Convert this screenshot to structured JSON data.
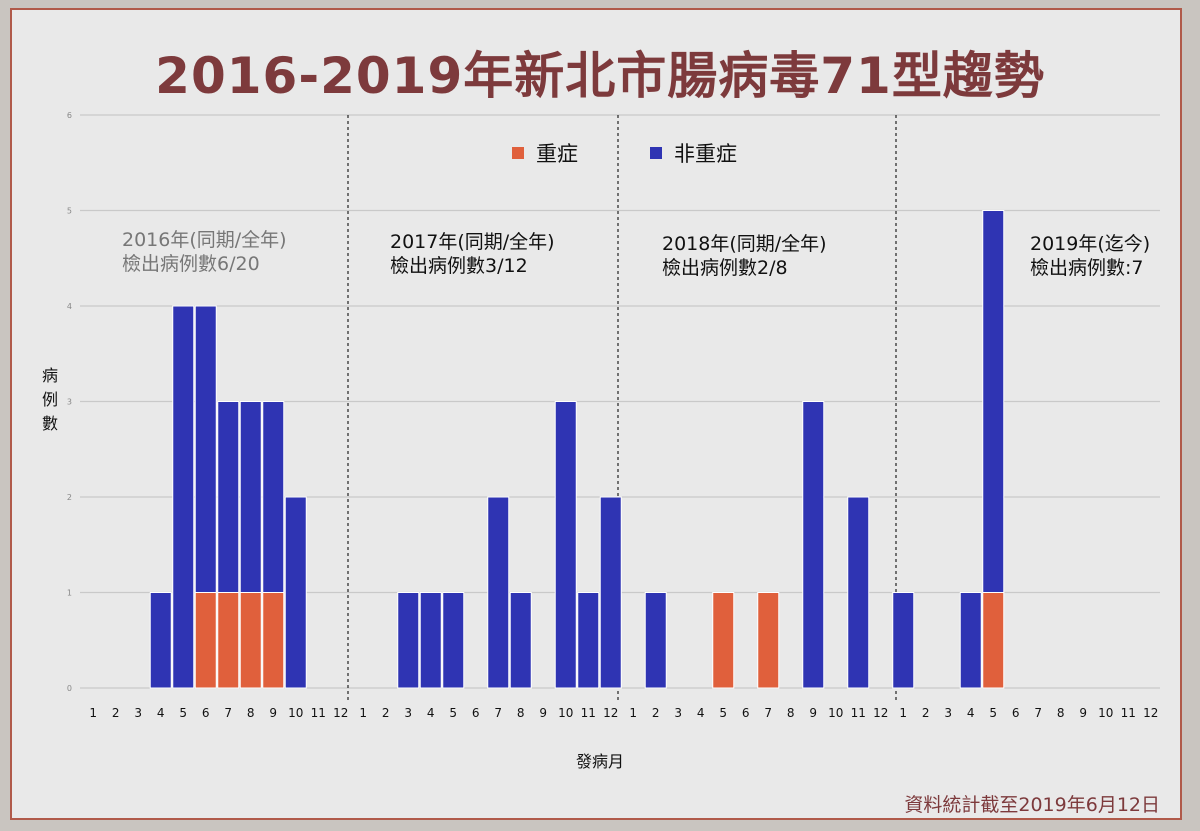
{
  "title": "2016-2019年新北市腸病毒71型趨勢",
  "footnote": "資料統計截至2019年6月12日",
  "legend": {
    "severe": "重症",
    "non_severe": "非重症"
  },
  "colors": {
    "severe": "#e0603c",
    "non_severe": "#2f34b3"
  },
  "annotations": [
    {
      "line1": "2016年(同期/全年)",
      "line2": "檢出病例數6/20"
    },
    {
      "line1": "2017年(同期/全年)",
      "line2": "檢出病例數3/12"
    },
    {
      "line1": "2018年(同期/全年)",
      "line2": "檢出病例數2/8"
    },
    {
      "line1": "2019年(迄今)",
      "line2": "檢出病例數:7"
    }
  ],
  "chart_data": {
    "type": "bar",
    "stacked": true,
    "xlabel": "發病月",
    "ylabel": "病例數",
    "ylim": [
      0,
      6
    ],
    "yticks": [
      0,
      1,
      2,
      3,
      4,
      5,
      6
    ],
    "grid": true,
    "legend_position": "top-center",
    "groups": [
      "2016",
      "2017",
      "2018",
      "2019"
    ],
    "categories": [
      "1",
      "2",
      "3",
      "4",
      "5",
      "6",
      "7",
      "8",
      "9",
      "10",
      "11",
      "12"
    ],
    "series": [
      {
        "name": "重症",
        "values": [
          [
            0,
            0,
            0,
            0,
            0,
            1,
            1,
            1,
            1,
            0,
            0,
            0
          ],
          [
            0,
            0,
            0,
            0,
            0,
            0,
            0,
            0,
            0,
            0,
            0,
            0
          ],
          [
            0,
            0,
            0,
            0,
            1,
            0,
            1,
            0,
            0,
            0,
            0,
            0
          ],
          [
            0,
            0,
            0,
            0,
            1,
            0,
            0,
            0,
            0,
            0,
            0,
            0
          ]
        ]
      },
      {
        "name": "非重症",
        "values": [
          [
            0,
            0,
            0,
            1,
            4,
            3,
            2,
            2,
            2,
            2,
            0,
            0
          ],
          [
            0,
            0,
            1,
            1,
            1,
            0,
            2,
            1,
            0,
            3,
            1,
            2
          ],
          [
            0,
            1,
            0,
            0,
            0,
            0,
            0,
            0,
            3,
            0,
            2,
            0
          ],
          [
            1,
            0,
            0,
            1,
            4,
            0,
            0,
            0,
            0,
            0,
            0,
            0
          ]
        ]
      }
    ]
  }
}
